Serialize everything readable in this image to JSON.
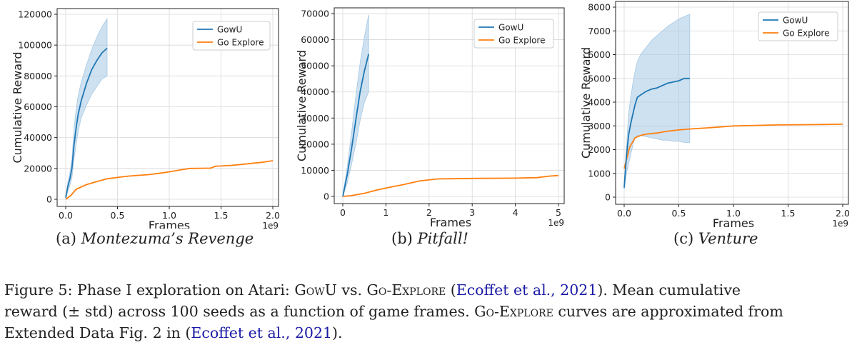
{
  "colors": {
    "gowu": "#1f77b4",
    "band": "#a6c8e4",
    "goexplore": "#ff7f0e",
    "grid": "#d8d8d8",
    "citation": "#1a1aa6"
  },
  "chart_data": [
    {
      "type": "line",
      "xlabel": "Frames",
      "ylabel": "Cumulative Reward",
      "x_multiplier": "1e9",
      "xlim": [
        0,
        2.0
      ],
      "ylim": [
        0,
        120000
      ],
      "xticks": [
        0.0,
        0.5,
        1.0,
        1.5,
        2.0
      ],
      "yticks": [
        0,
        20000,
        40000,
        60000,
        80000,
        100000,
        120000
      ],
      "grid": true,
      "legend_position": "upper-right",
      "series": [
        {
          "name": "GowU",
          "x": [
            0.0,
            0.02,
            0.04,
            0.06,
            0.08,
            0.1,
            0.12,
            0.15,
            0.2,
            0.25,
            0.3,
            0.35,
            0.4
          ],
          "y": [
            1000,
            8000,
            13000,
            20000,
            35000,
            46000,
            55000,
            64000,
            75000,
            84000,
            90000,
            95000,
            98000
          ],
          "y_upper": [
            1500,
            11000,
            17000,
            26000,
            45000,
            58000,
            67000,
            76000,
            87000,
            97000,
            105000,
            112000,
            117000
          ],
          "y_lower": [
            500,
            5000,
            9000,
            14000,
            26000,
            35000,
            44000,
            53000,
            61000,
            68000,
            73000,
            78000,
            80000
          ]
        },
        {
          "name": "Go Explore",
          "x": [
            0.0,
            0.05,
            0.1,
            0.2,
            0.3,
            0.4,
            0.5,
            0.6,
            0.7,
            0.8,
            0.9,
            1.0,
            1.1,
            1.2,
            1.3,
            1.4,
            1.45,
            1.5,
            1.6,
            1.7,
            1.8,
            1.9,
            2.0
          ],
          "y": [
            0,
            2500,
            6500,
            9500,
            11500,
            13300,
            14200,
            15000,
            15500,
            16000,
            16800,
            17800,
            19000,
            20000,
            20100,
            20200,
            21500,
            21600,
            22000,
            22600,
            23300,
            24000,
            25000
          ]
        }
      ]
    },
    {
      "type": "line",
      "xlabel": "Frames",
      "ylabel": "Cumulative Reward",
      "x_multiplier": "1e9",
      "xlim": [
        0,
        5
      ],
      "ylim": [
        0,
        70000
      ],
      "xticks": [
        0,
        1,
        2,
        3,
        4,
        5
      ],
      "yticks": [
        0,
        10000,
        20000,
        30000,
        40000,
        50000,
        60000,
        70000
      ],
      "grid": true,
      "legend_position": "upper-right",
      "series": [
        {
          "name": "GowU",
          "x": [
            0.0,
            0.1,
            0.2,
            0.3,
            0.4,
            0.5,
            0.6
          ],
          "y": [
            0,
            8000,
            18000,
            29000,
            40000,
            48000,
            54500
          ],
          "y_upper": [
            300,
            11000,
            24000,
            38000,
            51000,
            61000,
            69500
          ],
          "y_lower": [
            0,
            5000,
            12000,
            20000,
            29000,
            36000,
            40000
          ]
        },
        {
          "name": "Go Explore",
          "x": [
            0.0,
            0.2,
            0.5,
            0.8,
            1.0,
            1.4,
            1.8,
            2.2,
            3.0,
            4.0,
            4.5,
            4.8,
            5.0
          ],
          "y": [
            0,
            300,
            1200,
            2500,
            3200,
            4500,
            6000,
            6700,
            6900,
            7000,
            7200,
            7800,
            8000
          ]
        }
      ]
    },
    {
      "type": "line",
      "xlabel": "Frames",
      "ylabel": "Cumulative Reward",
      "x_multiplier": "1e9",
      "xlim": [
        0,
        2.0
      ],
      "ylim": [
        0,
        8000
      ],
      "xticks": [
        0.0,
        0.5,
        1.0,
        1.5,
        2.0
      ],
      "yticks": [
        0,
        1000,
        2000,
        3000,
        4000,
        5000,
        6000,
        7000,
        8000
      ],
      "grid": true,
      "legend_position": "upper-right",
      "series": [
        {
          "name": "GowU",
          "x": [
            0.0,
            0.02,
            0.04,
            0.06,
            0.08,
            0.1,
            0.12,
            0.15,
            0.2,
            0.25,
            0.3,
            0.35,
            0.4,
            0.45,
            0.5,
            0.55,
            0.6
          ],
          "y": [
            400,
            1700,
            2600,
            3100,
            3500,
            3900,
            4200,
            4300,
            4450,
            4550,
            4600,
            4700,
            4800,
            4850,
            4900,
            5000,
            5000
          ],
          "y_upper": [
            500,
            2000,
            3500,
            4200,
            4800,
            5300,
            5700,
            6000,
            6300,
            6600,
            6800,
            7000,
            7200,
            7350,
            7500,
            7600,
            7700
          ],
          "y_lower": [
            300,
            1000,
            1400,
            1800,
            2200,
            2500,
            2600,
            2600,
            2550,
            2500,
            2450,
            2400,
            2400,
            2350,
            2350,
            2300,
            2300
          ]
        },
        {
          "name": "Go Explore",
          "x": [
            0.0,
            0.05,
            0.1,
            0.15,
            0.2,
            0.3,
            0.4,
            0.5,
            0.6,
            0.8,
            1.0,
            1.2,
            1.4,
            1.6,
            1.8,
            2.0
          ],
          "y": [
            1200,
            2100,
            2500,
            2600,
            2650,
            2700,
            2780,
            2830,
            2870,
            2930,
            3000,
            3020,
            3040,
            3050,
            3060,
            3070
          ]
        }
      ]
    }
  ],
  "subcaptions": [
    {
      "label": "(a)",
      "name": "Montezuma’s Revenge"
    },
    {
      "label": "(b)",
      "name": "Pitfall!"
    },
    {
      "label": "(c)",
      "name": "Venture"
    }
  ],
  "figure_caption": {
    "l1_a": "Figure 5: Phase I exploration on Atari: ",
    "l1_b": "GowU",
    "l1_c": " vs. ",
    "l1_d": "Go-Explore",
    "l1_e": " (",
    "l1_f": "Ecoffet et al., 2021",
    "l1_g": "). Mean cumulative",
    "l2_a": "reward (± std) across 100 seeds as a function of game frames. ",
    "l2_b": "Go-Explore",
    "l2_c": " curves are approximated from",
    "l3_a": "Extended Data Fig. 2 in (",
    "l3_b": "Ecoffet et al., 2021",
    "l3_c": ")."
  }
}
